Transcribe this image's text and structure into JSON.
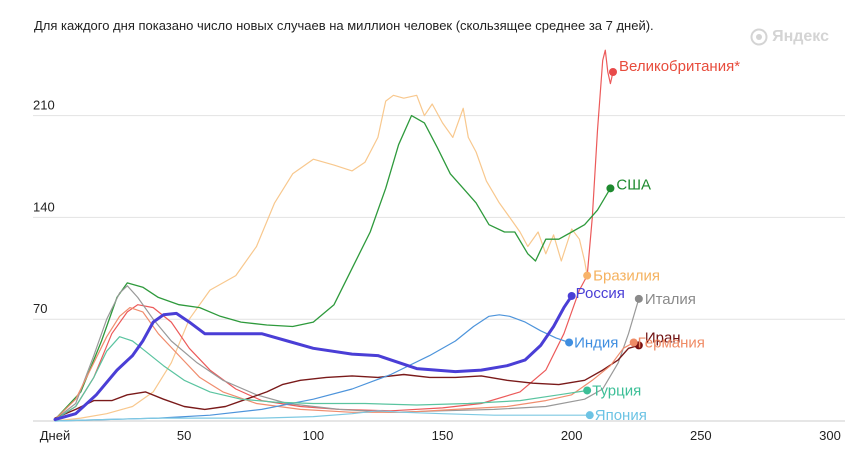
{
  "subtitle": "Для каждого дня показано число новых случаев на миллион человек (скользящее среднее за 7 дней).",
  "watermark": "Яндекс",
  "chart_data": {
    "type": "line",
    "xlabel": "Дней",
    "x_ticks": [
      50,
      100,
      150,
      200,
      250,
      300
    ],
    "y_ticks": [
      70,
      140,
      210
    ],
    "xlim": [
      0,
      300
    ],
    "ylim": [
      0,
      262
    ],
    "grid": true,
    "series": [
      {
        "name": "Бразилия",
        "color": "#f8c88e",
        "width": 1.2,
        "dot": "#f8b36a",
        "label_color": "#f5b25f",
        "points": [
          [
            0,
            0
          ],
          [
            10,
            2
          ],
          [
            20,
            5
          ],
          [
            30,
            10
          ],
          [
            38,
            20
          ],
          [
            45,
            40
          ],
          [
            52,
            70
          ],
          [
            60,
            90
          ],
          [
            70,
            100
          ],
          [
            78,
            120
          ],
          [
            85,
            150
          ],
          [
            92,
            170
          ],
          [
            100,
            180
          ],
          [
            108,
            176
          ],
          [
            115,
            172
          ],
          [
            120,
            178
          ],
          [
            125,
            195
          ],
          [
            128,
            220
          ],
          [
            131,
            224
          ],
          [
            135,
            222
          ],
          [
            140,
            224
          ],
          [
            143,
            210
          ],
          [
            146,
            218
          ],
          [
            150,
            205
          ],
          [
            154,
            195
          ],
          [
            158,
            215
          ],
          [
            160,
            195
          ],
          [
            163,
            185
          ],
          [
            167,
            165
          ],
          [
            172,
            150
          ],
          [
            176,
            140
          ],
          [
            180,
            130
          ],
          [
            183,
            120
          ],
          [
            187,
            130
          ],
          [
            190,
            115
          ],
          [
            193,
            128
          ],
          [
            196,
            110
          ],
          [
            200,
            132
          ],
          [
            203,
            125
          ],
          [
            205,
            110
          ],
          [
            206,
            100
          ]
        ]
      },
      {
        "name": "Великобритания*",
        "color": "#ec5a5a",
        "width": 1.2,
        "dot": "#e84a4a",
        "label_color": "#e74c3c",
        "points": [
          [
            0,
            1
          ],
          [
            8,
            10
          ],
          [
            15,
            30
          ],
          [
            22,
            60
          ],
          [
            28,
            75
          ],
          [
            32,
            80
          ],
          [
            38,
            78
          ],
          [
            45,
            68
          ],
          [
            52,
            50
          ],
          [
            60,
            35
          ],
          [
            70,
            22
          ],
          [
            80,
            14
          ],
          [
            95,
            10
          ],
          [
            110,
            8
          ],
          [
            130,
            7
          ],
          [
            150,
            9
          ],
          [
            165,
            12
          ],
          [
            180,
            20
          ],
          [
            190,
            35
          ],
          [
            197,
            60
          ],
          [
            203,
            90
          ],
          [
            206,
            100
          ],
          [
            208,
            140
          ],
          [
            210,
            200
          ],
          [
            212,
            248
          ],
          [
            213,
            255
          ],
          [
            214,
            240
          ],
          [
            215,
            232
          ],
          [
            216,
            240
          ]
        ]
      },
      {
        "name": "США",
        "color": "#2e9a3c",
        "width": 1.3,
        "dot": "#1e8a2f",
        "label_color": "#1e8a2f",
        "points": [
          [
            0,
            1
          ],
          [
            10,
            20
          ],
          [
            18,
            55
          ],
          [
            24,
            85
          ],
          [
            28,
            95
          ],
          [
            34,
            92
          ],
          [
            40,
            85
          ],
          [
            48,
            80
          ],
          [
            56,
            78
          ],
          [
            64,
            72
          ],
          [
            72,
            68
          ],
          [
            82,
            66
          ],
          [
            92,
            65
          ],
          [
            100,
            68
          ],
          [
            108,
            80
          ],
          [
            115,
            105
          ],
          [
            122,
            130
          ],
          [
            128,
            160
          ],
          [
            133,
            190
          ],
          [
            138,
            210
          ],
          [
            143,
            205
          ],
          [
            148,
            188
          ],
          [
            153,
            170
          ],
          [
            158,
            160
          ],
          [
            163,
            150
          ],
          [
            168,
            135
          ],
          [
            174,
            130
          ],
          [
            178,
            130
          ],
          [
            183,
            115
          ],
          [
            186,
            110
          ],
          [
            190,
            125
          ],
          [
            195,
            125
          ],
          [
            200,
            130
          ],
          [
            205,
            135
          ],
          [
            210,
            145
          ],
          [
            215,
            160
          ]
        ]
      },
      {
        "name": "Россия",
        "color": "#4a3ed6",
        "width": 3,
        "dot": "#4a3ed6",
        "label_color": "#4a3ed6",
        "points": [
          [
            0,
            1
          ],
          [
            8,
            5
          ],
          [
            16,
            18
          ],
          [
            24,
            35
          ],
          [
            30,
            45
          ],
          [
            34,
            55
          ],
          [
            38,
            68
          ],
          [
            42,
            73
          ],
          [
            47,
            74
          ],
          [
            52,
            68
          ],
          [
            58,
            60
          ],
          [
            68,
            60
          ],
          [
            80,
            60
          ],
          [
            90,
            55
          ],
          [
            100,
            50
          ],
          [
            115,
            46
          ],
          [
            125,
            45
          ],
          [
            140,
            36
          ],
          [
            155,
            34
          ],
          [
            165,
            35
          ],
          [
            175,
            38
          ],
          [
            182,
            42
          ],
          [
            188,
            52
          ],
          [
            193,
            65
          ],
          [
            197,
            78
          ],
          [
            200,
            86
          ]
        ]
      },
      {
        "name": "Италия",
        "color": "#999999",
        "width": 1.2,
        "dot": "#8a8a8a",
        "label_color": "#8a8a8a",
        "points": [
          [
            0,
            1
          ],
          [
            8,
            12
          ],
          [
            15,
            45
          ],
          [
            20,
            70
          ],
          [
            25,
            88
          ],
          [
            28,
            93
          ],
          [
            32,
            85
          ],
          [
            38,
            70
          ],
          [
            45,
            55
          ],
          [
            55,
            40
          ],
          [
            65,
            28
          ],
          [
            78,
            18
          ],
          [
            90,
            12
          ],
          [
            110,
            8
          ],
          [
            130,
            6
          ],
          [
            150,
            7
          ],
          [
            170,
            8
          ],
          [
            190,
            10
          ],
          [
            205,
            15
          ],
          [
            212,
            22
          ],
          [
            218,
            40
          ],
          [
            222,
            60
          ],
          [
            226,
            84
          ]
        ]
      },
      {
        "name": "Иран",
        "color": "#7a1a1a",
        "width": 1.4,
        "dot": "#7a1010",
        "label_color": "#6e0f0f",
        "points": [
          [
            0,
            2
          ],
          [
            8,
            8
          ],
          [
            15,
            14
          ],
          [
            22,
            14
          ],
          [
            28,
            18
          ],
          [
            35,
            20
          ],
          [
            42,
            15
          ],
          [
            50,
            10
          ],
          [
            58,
            8
          ],
          [
            66,
            10
          ],
          [
            74,
            15
          ],
          [
            82,
            20
          ],
          [
            88,
            25
          ],
          [
            95,
            28
          ],
          [
            105,
            30
          ],
          [
            115,
            31
          ],
          [
            125,
            30
          ],
          [
            135,
            32
          ],
          [
            145,
            30
          ],
          [
            155,
            30
          ],
          [
            165,
            31
          ],
          [
            175,
            28
          ],
          [
            185,
            26
          ],
          [
            195,
            25
          ],
          [
            205,
            28
          ],
          [
            212,
            35
          ],
          [
            218,
            42
          ],
          [
            222,
            50
          ],
          [
            226,
            52
          ]
        ]
      },
      {
        "name": "Германия",
        "color": "#f08d6e",
        "width": 1.2,
        "dot": "#ef8b65",
        "label_color": "#ef8b65",
        "points": [
          [
            0,
            1
          ],
          [
            8,
            15
          ],
          [
            15,
            40
          ],
          [
            20,
            58
          ],
          [
            25,
            72
          ],
          [
            29,
            78
          ],
          [
            34,
            75
          ],
          [
            40,
            60
          ],
          [
            48,
            45
          ],
          [
            56,
            30
          ],
          [
            65,
            20
          ],
          [
            78,
            12
          ],
          [
            95,
            8
          ],
          [
            115,
            6
          ],
          [
            135,
            6
          ],
          [
            155,
            8
          ],
          [
            175,
            10
          ],
          [
            190,
            14
          ],
          [
            200,
            18
          ],
          [
            208,
            28
          ],
          [
            215,
            38
          ],
          [
            220,
            50
          ],
          [
            224,
            54
          ]
        ]
      },
      {
        "name": "Индия",
        "color": "#4d94db",
        "width": 1.2,
        "dot": "#3f8ee0",
        "label_color": "#3f8ee0",
        "points": [
          [
            0,
            0
          ],
          [
            20,
            1
          ],
          [
            40,
            2
          ],
          [
            60,
            4
          ],
          [
            80,
            8
          ],
          [
            100,
            15
          ],
          [
            115,
            22
          ],
          [
            130,
            32
          ],
          [
            145,
            45
          ],
          [
            155,
            55
          ],
          [
            162,
            65
          ],
          [
            168,
            72
          ],
          [
            172,
            73
          ],
          [
            176,
            72
          ],
          [
            182,
            68
          ],
          [
            188,
            62
          ],
          [
            194,
            57
          ],
          [
            199,
            54
          ]
        ]
      },
      {
        "name": "Турция",
        "color": "#5ac4a0",
        "width": 1.2,
        "dot": "#3cbf97",
        "label_color": "#3cbf97",
        "points": [
          [
            0,
            1
          ],
          [
            8,
            10
          ],
          [
            15,
            30
          ],
          [
            20,
            48
          ],
          [
            25,
            58
          ],
          [
            30,
            55
          ],
          [
            35,
            48
          ],
          [
            42,
            38
          ],
          [
            50,
            28
          ],
          [
            60,
            20
          ],
          [
            72,
            15
          ],
          [
            85,
            13
          ],
          [
            100,
            12
          ],
          [
            120,
            12
          ],
          [
            140,
            11
          ],
          [
            160,
            12
          ],
          [
            180,
            14
          ],
          [
            195,
            18
          ],
          [
            206,
            21
          ]
        ]
      },
      {
        "name": "Япония",
        "color": "#7ec9e2",
        "width": 1.2,
        "dot": "#6cc3e4",
        "label_color": "#6cc3e4",
        "points": [
          [
            0,
            0
          ],
          [
            20,
            1
          ],
          [
            40,
            2
          ],
          [
            60,
            2
          ],
          [
            80,
            2
          ],
          [
            100,
            3
          ],
          [
            115,
            5
          ],
          [
            125,
            7
          ],
          [
            135,
            6
          ],
          [
            150,
            5
          ],
          [
            170,
            4
          ],
          [
            190,
            4
          ],
          [
            207,
            4
          ]
        ]
      }
    ]
  }
}
